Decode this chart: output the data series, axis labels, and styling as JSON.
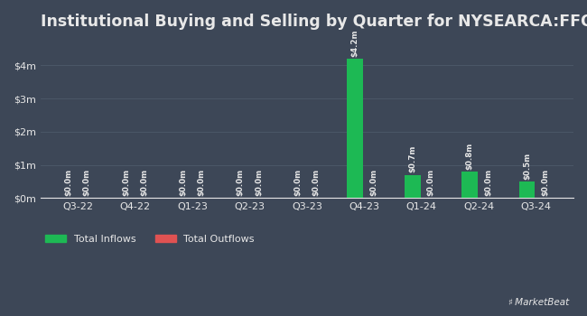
{
  "title": "Institutional Buying and Selling by Quarter for NYSEARCA:FFOG",
  "quarters": [
    "Q3-22",
    "Q4-22",
    "Q1-23",
    "Q2-23",
    "Q3-23",
    "Q4-23",
    "Q1-24",
    "Q2-24",
    "Q3-24"
  ],
  "inflows": [
    0.0,
    0.0,
    0.0,
    0.0,
    0.0,
    4.2,
    0.7,
    0.8,
    0.5
  ],
  "outflows": [
    0.0,
    0.0,
    0.0,
    0.0,
    0.0,
    0.0,
    0.0,
    0.0,
    0.0
  ],
  "inflow_labels": [
    "$0.0m",
    "$0.0m",
    "$0.0m",
    "$0.0m",
    "$0.0m",
    "$4.2m",
    "$0.7m",
    "$0.8m",
    "$0.5m"
  ],
  "outflow_labels": [
    "$0.0m",
    "$0.0m",
    "$0.0m",
    "$0.0m",
    "$0.0m",
    "$0.0m",
    "$0.0m",
    "$0.0m",
    "$0.0m"
  ],
  "inflow_color": "#1db954",
  "outflow_color": "#e05252",
  "background_color": "#3d4757",
  "text_color": "#e8e8e8",
  "grid_color": "#4d5a6a",
  "bar_width": 0.28,
  "bar_gap": 0.04,
  "ylim": [
    0,
    4.8
  ],
  "yticks": [
    0,
    1,
    2,
    3,
    4
  ],
  "ytick_labels": [
    "$0m",
    "$1m",
    "$2m",
    "$3m",
    "$4m"
  ],
  "title_fontsize": 12.5,
  "tick_fontsize": 8,
  "label_fontsize": 6.2,
  "legend_fontsize": 8
}
